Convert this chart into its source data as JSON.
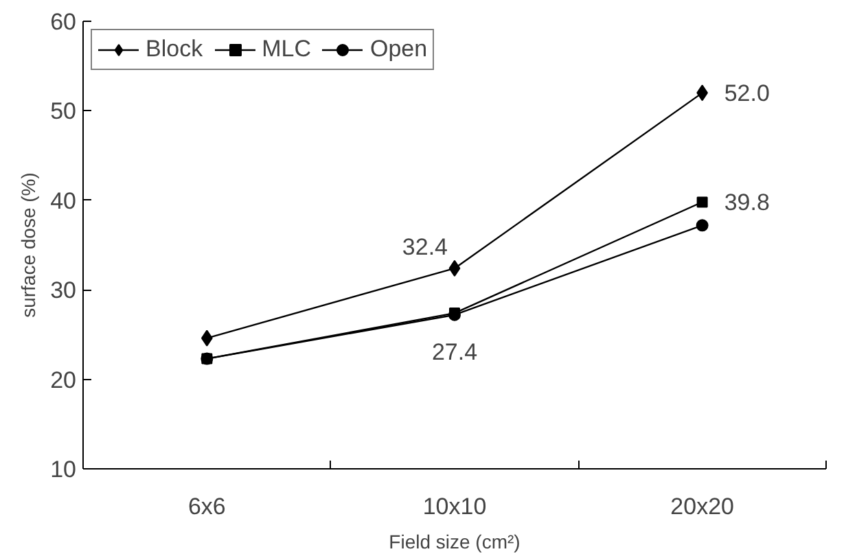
{
  "chart_data": {
    "type": "line",
    "xlabel": "Field size (cm²)",
    "ylabel": "surface dose (%)",
    "categories": [
      "6x6",
      "10x10",
      "20x20"
    ],
    "series": [
      {
        "name": "Block",
        "color": "#000000",
        "marker": "diamond",
        "values": [
          24.6,
          32.4,
          52.0
        ]
      },
      {
        "name": "MLC",
        "color": "#000000",
        "marker": "square",
        "values": [
          22.3,
          27.4,
          39.8
        ]
      },
      {
        "name": "Open",
        "color": "#000000",
        "marker": "circle",
        "values": [
          22.3,
          27.2,
          37.2
        ]
      }
    ],
    "ylim": [
      10,
      60
    ],
    "yticks": [
      10,
      20,
      30,
      40,
      50,
      60
    ],
    "grid": false,
    "legend": "top left",
    "line_style": "solid",
    "annotations": [
      {
        "text": "32.4",
        "x": "10x10",
        "y": 32.4
      },
      {
        "text": "27.4",
        "x": "10x10",
        "y": 27.4
      },
      {
        "text": "52.0",
        "x": "20x20",
        "y": 52.0
      },
      {
        "text": "39.8",
        "x": "20x20",
        "y": 39.8
      }
    ]
  }
}
